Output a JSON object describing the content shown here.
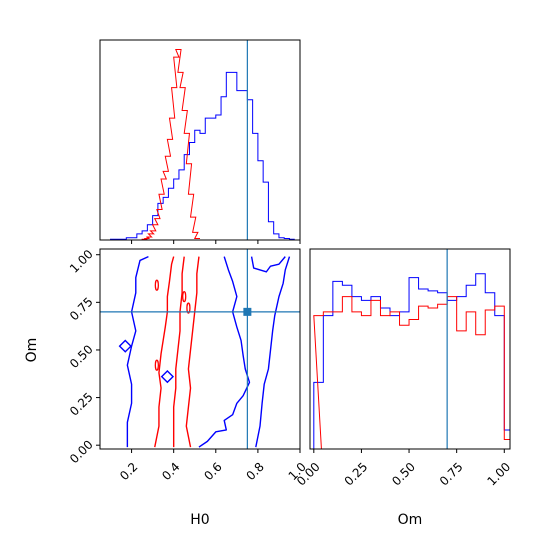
{
  "colors": {
    "blue": "#0000ff",
    "red": "#ff0000",
    "truth": "#1f77b4"
  },
  "chart_data": [
    {
      "type": "histogram",
      "panel": "H0-marginal",
      "xlim": [
        0.05,
        1.0
      ],
      "x_ticks": [
        0.2,
        0.4,
        0.6,
        0.8,
        1.0
      ],
      "truth": 0.75,
      "step_width": 0.025,
      "series": [
        {
          "color": "blue",
          "x": [
            0.1,
            0.125,
            0.15,
            0.175,
            0.2,
            0.225,
            0.25,
            0.275,
            0.3,
            0.325,
            0.35,
            0.375,
            0.4,
            0.425,
            0.45,
            0.475,
            0.5,
            0.525,
            0.55,
            0.575,
            0.6,
            0.625,
            0.65,
            0.675,
            0.7,
            0.725,
            0.75,
            0.775,
            0.8,
            0.825,
            0.85,
            0.875,
            0.9,
            0.925,
            0.95
          ],
          "values": [
            0.5,
            0.5,
            0.5,
            1.5,
            1.5,
            4,
            6,
            10,
            16,
            24,
            28,
            34,
            40,
            46,
            56,
            64,
            72,
            70,
            80,
            80,
            82,
            94,
            110,
            110,
            98,
            98,
            92,
            70,
            52,
            38,
            12,
            4,
            1.5,
            1,
            0.5
          ]
        },
        {
          "color": "red",
          "x": [
            0.25,
            0.26,
            0.27,
            0.28,
            0.29,
            0.3,
            0.31,
            0.32,
            0.33,
            0.34,
            0.35,
            0.36,
            0.37,
            0.38,
            0.39,
            0.4,
            0.41,
            0.42,
            0.43,
            0.44,
            0.45,
            0.46,
            0.47,
            0.48,
            0.49,
            0.5
          ],
          "values": [
            0.5,
            1,
            2,
            4,
            6,
            10,
            14,
            20,
            30,
            40,
            45,
            55,
            66,
            80,
            100,
            120,
            125,
            110,
            100,
            85,
            70,
            50,
            30,
            15,
            5,
            1
          ]
        }
      ]
    },
    {
      "type": "contour",
      "panel": "H0-vs-Om",
      "xlabel": "H0",
      "ylabel": "Om",
      "xlim": [
        0.05,
        1.0
      ],
      "ylim": [
        -0.02,
        1.03
      ],
      "x_ticks": [
        0.2,
        0.4,
        0.6,
        0.8,
        1.0
      ],
      "y_ticks": [
        0.0,
        0.25,
        0.5,
        0.75,
        1.0
      ],
      "truth": {
        "x": 0.75,
        "y": 0.7
      },
      "series": [
        {
          "color": "blue",
          "level": "inner",
          "polyline": [
            [
              0.52,
              -0.01
            ],
            [
              0.56,
              0.02
            ],
            [
              0.6,
              0.07
            ],
            [
              0.65,
              0.08
            ],
            [
              0.64,
              0.13
            ],
            [
              0.68,
              0.16
            ],
            [
              0.7,
              0.22
            ],
            [
              0.73,
              0.26
            ],
            [
              0.76,
              0.33
            ],
            [
              0.74,
              0.4
            ],
            [
              0.73,
              0.47
            ],
            [
              0.72,
              0.55
            ],
            [
              0.7,
              0.62
            ],
            [
              0.68,
              0.7
            ],
            [
              0.7,
              0.78
            ],
            [
              0.68,
              0.86
            ],
            [
              0.66,
              0.92
            ],
            [
              0.64,
              0.99
            ]
          ]
        },
        {
          "color": "blue",
          "level": "outer",
          "polyline": [
            [
              0.79,
              -0.01
            ],
            [
              0.81,
              0.1
            ],
            [
              0.82,
              0.22
            ],
            [
              0.83,
              0.32
            ],
            [
              0.85,
              0.4
            ],
            [
              0.86,
              0.5
            ],
            [
              0.87,
              0.6
            ],
            [
              0.88,
              0.68
            ],
            [
              0.9,
              0.78
            ],
            [
              0.92,
              0.85
            ],
            [
              0.93,
              0.92
            ],
            [
              0.95,
              0.99
            ]
          ]
        },
        {
          "color": "blue",
          "level": "outer",
          "polyline": [
            [
              0.18,
              -0.01
            ],
            [
              0.18,
              0.12
            ],
            [
              0.2,
              0.22
            ],
            [
              0.2,
              0.32
            ],
            [
              0.18,
              0.42
            ],
            [
              0.2,
              0.52
            ],
            [
              0.22,
              0.6
            ],
            [
              0.2,
              0.7
            ],
            [
              0.22,
              0.8
            ],
            [
              0.22,
              0.88
            ],
            [
              0.24,
              0.97
            ],
            [
              0.28,
              0.99
            ]
          ]
        },
        {
          "color": "blue",
          "level": "outer",
          "polyline": [
            [
              0.77,
              0.99
            ],
            [
              0.78,
              0.93
            ],
            [
              0.84,
              0.91
            ],
            [
              0.86,
              0.94
            ],
            [
              0.9,
              0.95
            ],
            [
              0.93,
              0.99
            ]
          ]
        },
        {
          "color": "red",
          "level": "outer",
          "polyline": [
            [
              0.31,
              -0.01
            ],
            [
              0.33,
              0.1
            ],
            [
              0.33,
              0.2
            ],
            [
              0.34,
              0.3
            ],
            [
              0.33,
              0.38
            ],
            [
              0.34,
              0.48
            ],
            [
              0.35,
              0.55
            ],
            [
              0.36,
              0.62
            ],
            [
              0.37,
              0.7
            ],
            [
              0.37,
              0.78
            ],
            [
              0.38,
              0.86
            ],
            [
              0.39,
              0.95
            ],
            [
              0.4,
              0.99
            ]
          ]
        },
        {
          "color": "red",
          "level": "outer",
          "polyline": [
            [
              0.48,
              -0.01
            ],
            [
              0.46,
              0.1
            ],
            [
              0.47,
              0.2
            ],
            [
              0.48,
              0.3
            ],
            [
              0.47,
              0.4
            ],
            [
              0.48,
              0.5
            ],
            [
              0.49,
              0.6
            ],
            [
              0.5,
              0.7
            ],
            [
              0.51,
              0.8
            ],
            [
              0.51,
              0.9
            ],
            [
              0.52,
              0.99
            ]
          ]
        },
        {
          "color": "red",
          "level": "inner",
          "polyline": [
            [
              0.4,
              -0.01
            ],
            [
              0.4,
              0.1
            ],
            [
              0.4,
              0.2
            ],
            [
              0.41,
              0.3
            ],
            [
              0.41,
              0.4
            ],
            [
              0.42,
              0.5
            ],
            [
              0.43,
              0.6
            ],
            [
              0.43,
              0.7
            ],
            [
              0.44,
              0.8
            ],
            [
              0.44,
              0.9
            ],
            [
              0.45,
              0.99
            ]
          ]
        }
      ]
    },
    {
      "type": "histogram",
      "panel": "Om-marginal",
      "xlabel": "Om",
      "xlim": [
        -0.02,
        1.03
      ],
      "x_ticks": [
        0.0,
        0.25,
        0.5,
        0.75,
        1.0
      ],
      "x_tick_labels": [
        "0.00",
        "0.25",
        "0.50",
        "0.75",
        "1.00"
      ],
      "truth": 0.7,
      "step_width": 0.05,
      "series": [
        {
          "color": "blue",
          "x": [
            0.0,
            0.05,
            0.1,
            0.15,
            0.2,
            0.25,
            0.3,
            0.35,
            0.4,
            0.45,
            0.5,
            0.55,
            0.6,
            0.65,
            0.7,
            0.75,
            0.8,
            0.85,
            0.9,
            0.95,
            1.0
          ],
          "values": [
            35,
            70,
            88,
            86,
            80,
            78,
            80,
            74,
            70,
            72,
            90,
            84,
            83,
            82,
            78,
            80,
            86,
            92,
            82,
            70,
            10
          ]
        },
        {
          "color": "red",
          "x": [
            -0.01,
            0.0,
            0.05,
            0.1,
            0.15,
            0.2,
            0.25,
            0.3,
            0.35,
            0.4,
            0.45,
            0.5,
            0.55,
            0.6,
            0.65,
            0.7,
            0.75,
            0.8,
            0.85,
            0.9,
            0.95,
            1.0
          ],
          "values": [
            0,
            70,
            72,
            72,
            80,
            72,
            70,
            78,
            70,
            72,
            65,
            68,
            75,
            74,
            76,
            80,
            62,
            72,
            60,
            73,
            75,
            5
          ]
        }
      ]
    }
  ]
}
